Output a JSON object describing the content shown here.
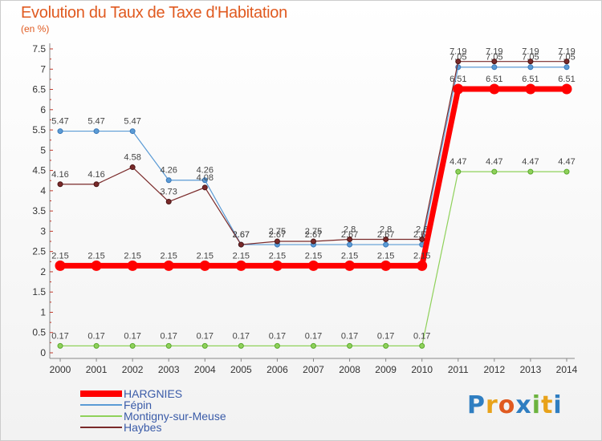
{
  "title": "Evolution du Taux de Taxe d'Habitation",
  "subtitle": "(en %)",
  "logo": {
    "letters": [
      "P",
      "r",
      "o",
      "x",
      "i",
      "t",
      "i"
    ],
    "colors": [
      "#2f7ec1",
      "#e8a21a",
      "#e05a20",
      "#2f7ec1",
      "#6cb33e",
      "#e8a21a",
      "#2f7ec1"
    ]
  },
  "chart_data": {
    "type": "line",
    "x": [
      "2000",
      "2001",
      "2002",
      "2003",
      "2004",
      "2005",
      "2006",
      "2007",
      "2008",
      "2009",
      "2010",
      "2011",
      "2012",
      "2013",
      "2014"
    ],
    "ylim": [
      0,
      7.5
    ],
    "yticks": [
      "0",
      "0.5",
      "1",
      "1.5",
      "2",
      "2.5",
      "3",
      "3.5",
      "4",
      "4.5",
      "5",
      "5.5",
      "6",
      "6.5",
      "7",
      "7.5"
    ],
    "grid": false,
    "legend_position": "bottom-left",
    "series": [
      {
        "name": "Montigny-sur-Meuse",
        "color": "#8fd15a",
        "values": [
          0.17,
          0.17,
          0.17,
          0.17,
          0.17,
          0.17,
          0.17,
          0.17,
          0.17,
          0.17,
          0.17,
          4.47,
          4.47,
          4.47,
          4.47
        ],
        "labels": [
          "0.17",
          "0.17",
          "0.17",
          "0.17",
          "0.17",
          "0.17",
          "0.17",
          "0.17",
          "0.17",
          "0.17",
          "0.17",
          "4.47",
          "4.47",
          "4.47",
          "4.47"
        ]
      },
      {
        "name": "Fépin",
        "color": "#5b9bd5",
        "values": [
          5.47,
          5.47,
          5.47,
          4.26,
          4.26,
          2.67,
          2.67,
          2.67,
          2.67,
          2.67,
          2.67,
          7.05,
          7.05,
          7.05,
          7.05
        ],
        "labels": [
          "5.47",
          "5.47",
          "5.47",
          "4.26",
          "4.26",
          "2.67",
          "2.67",
          "2.67",
          "2.67",
          "2.67",
          "2.67",
          "7.05",
          "7.05",
          "7.05",
          "7.05"
        ]
      },
      {
        "name": "Haybes",
        "color": "#7a2a2a",
        "values": [
          4.16,
          4.16,
          4.58,
          3.73,
          4.08,
          2.67,
          2.75,
          2.75,
          2.8,
          2.8,
          2.8,
          7.19,
          7.19,
          7.19,
          7.19
        ],
        "labels": [
          "4.16",
          "4.16",
          "4.58",
          "3.73",
          "4.08",
          "2.67",
          "2.75",
          "2.75",
          "2.8",
          "2.8",
          "2.8",
          "7.19",
          "7.19",
          "7.19",
          "7.19"
        ]
      },
      {
        "name": "HARGNIES",
        "color": "#ff0000",
        "values": [
          2.15,
          2.15,
          2.15,
          2.15,
          2.15,
          2.15,
          2.15,
          2.15,
          2.15,
          2.15,
          2.15,
          6.51,
          6.51,
          6.51,
          6.51
        ],
        "labels": [
          "2.15",
          "2.15",
          "2.15",
          "2.15",
          "2.15",
          "2.15",
          "2.15",
          "2.15",
          "2.15",
          "2.15",
          "2.15",
          "6.51",
          "6.51",
          "6.51",
          "6.51"
        ]
      }
    ],
    "legend_order": [
      "HARGNIES",
      "Fépin",
      "Montigny-sur-Meuse",
      "Haybes"
    ]
  }
}
